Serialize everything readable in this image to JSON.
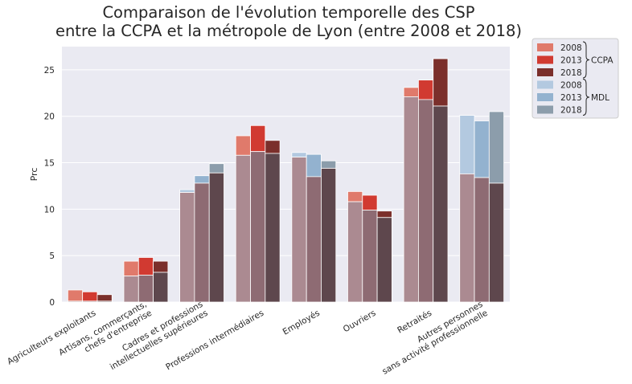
{
  "chart_data": {
    "type": "bar",
    "title_lines": [
      "Comparaison de l'évolution temporelle des CSP",
      "entre la CCPA et la métropole de Lyon (entre 2008 et 2018)"
    ],
    "xlabel": "",
    "ylabel": "Prc",
    "ylim": [
      0,
      27.5
    ],
    "yticks": [
      0,
      5,
      10,
      15,
      20,
      25
    ],
    "grid": true,
    "legend_position": "outside-top-right",
    "categories": [
      [
        "Agriculteurs exploitants"
      ],
      [
        "Artisans, commerçants,",
        "chefs d'entreprise"
      ],
      [
        "Cadres et professions",
        "intellectuelles supérieures"
      ],
      [
        "Professions intermédiaires"
      ],
      [
        "Employés"
      ],
      [
        "Ouvriers"
      ],
      [
        "Retraités"
      ],
      [
        "Autres personnes",
        "sans activité professionnelle"
      ]
    ],
    "years": [
      "2008",
      "2013",
      "2018"
    ],
    "groups": [
      {
        "name": "CCPA",
        "colors": [
          "#e07a6b",
          "#d13a31",
          "#7b2f2b"
        ],
        "series": [
          {
            "year": "2008",
            "values": [
              1.3,
              4.4,
              11.8,
              17.9,
              15.6,
              11.9,
              23.1,
              13.8
            ]
          },
          {
            "year": "2013",
            "values": [
              1.1,
              4.8,
              12.8,
              19.0,
              13.5,
              11.5,
              23.9,
              13.4
            ]
          },
          {
            "year": "2018",
            "values": [
              0.8,
              4.4,
              13.9,
              17.4,
              14.4,
              9.8,
              26.2,
              12.8
            ]
          }
        ]
      },
      {
        "name": "MDL",
        "colors": [
          "#b3c9e0",
          "#93b2cf",
          "#8c9dab"
        ],
        "series": [
          {
            "year": "2008",
            "values": [
              0.1,
              2.8,
              12.1,
              15.8,
              16.1,
              10.8,
              22.1,
              20.1
            ]
          },
          {
            "year": "2013",
            "values": [
              0.1,
              2.9,
              13.6,
              16.2,
              15.9,
              9.9,
              21.8,
              19.5
            ]
          },
          {
            "year": "2018",
            "values": [
              0.1,
              3.2,
              14.9,
              16.0,
              15.2,
              9.1,
              21.1,
              20.5
            ]
          }
        ]
      }
    ],
    "overlap_colors": [
      "#ab8a91",
      "#8e6b73",
      "#5e474d"
    ],
    "colors": {
      "plot_background": "#eaeaf2",
      "grid": "#ffffff",
      "text": "#262626",
      "legend_border": "#cccccc",
      "legend_background": "#eaeaf2"
    }
  }
}
